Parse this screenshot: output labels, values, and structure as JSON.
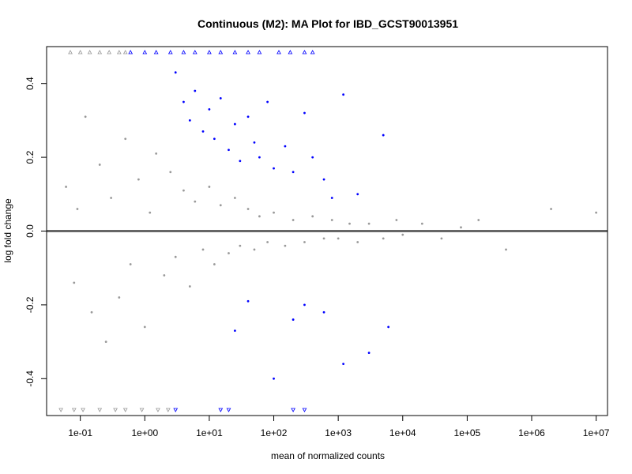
{
  "chart_data": {
    "type": "scatter",
    "title": "Continuous (M2): MA Plot for IBD_GCST90013951",
    "xlabel": "mean of normalized counts",
    "ylabel": "log fold change",
    "x_scale": "log10",
    "xlim": [
      0.03,
      15000000
    ],
    "ylim": [
      -0.5,
      0.5
    ],
    "x_ticks": [
      {
        "value": 0.1,
        "label": "1e-01"
      },
      {
        "value": 1,
        "label": "1e+00"
      },
      {
        "value": 10,
        "label": "1e+01"
      },
      {
        "value": 100,
        "label": "1e+02"
      },
      {
        "value": 1000,
        "label": "1e+03"
      },
      {
        "value": 10000,
        "label": "1e+04"
      },
      {
        "value": 100000,
        "label": "1e+05"
      },
      {
        "value": 1000000,
        "label": "1e+06"
      },
      {
        "value": 10000000,
        "label": "1e+07"
      }
    ],
    "y_ticks": [
      {
        "value": -0.4,
        "label": "-0.4"
      },
      {
        "value": -0.2,
        "label": "-0.2"
      },
      {
        "value": 0.0,
        "label": "0.0"
      },
      {
        "value": 0.2,
        "label": "0.2"
      },
      {
        "value": 0.4,
        "label": "0.4"
      }
    ],
    "reference_line": {
      "y": 0,
      "color": "#666666"
    },
    "colors": {
      "nonsignificant": "#999999",
      "significant": "#0000ff"
    },
    "grid": false,
    "legend": "none",
    "series": [
      {
        "values": [
          [
            0.06,
            0.12
          ],
          [
            0.08,
            -0.14
          ],
          [
            0.09,
            0.06
          ],
          [
            0.12,
            0.31
          ],
          [
            0.15,
            -0.22
          ],
          [
            0.2,
            0.18
          ],
          [
            0.25,
            -0.3
          ],
          [
            0.3,
            0.09
          ],
          [
            0.4,
            -0.18
          ],
          [
            0.5,
            0.25
          ],
          [
            0.6,
            -0.09
          ],
          [
            0.8,
            0.14
          ],
          [
            1,
            -0.26
          ],
          [
            1.2,
            0.05
          ],
          [
            1.5,
            0.21
          ],
          [
            2,
            -0.12
          ],
          [
            2.5,
            0.16
          ],
          [
            3,
            -0.07
          ],
          [
            4,
            0.11
          ],
          [
            5,
            -0.15
          ],
          [
            6,
            0.08
          ],
          [
            8,
            -0.05
          ],
          [
            10,
            0.12
          ],
          [
            12,
            -0.09
          ],
          [
            15,
            0.07
          ],
          [
            20,
            -0.06
          ],
          [
            25,
            0.09
          ],
          [
            30,
            -0.04
          ],
          [
            40,
            0.06
          ],
          [
            50,
            -0.05
          ],
          [
            60,
            0.04
          ],
          [
            80,
            -0.03
          ],
          [
            100,
            0.05
          ],
          [
            150,
            -0.04
          ],
          [
            200,
            0.03
          ],
          [
            300,
            -0.03
          ],
          [
            400,
            0.04
          ],
          [
            600,
            -0.02
          ],
          [
            800,
            0.03
          ],
          [
            1000,
            -0.02
          ],
          [
            1500,
            0.02
          ],
          [
            2000,
            -0.03
          ],
          [
            3000,
            0.02
          ],
          [
            5000,
            -0.02
          ],
          [
            8000,
            0.03
          ],
          [
            10000,
            -0.01
          ],
          [
            20000,
            0.02
          ],
          [
            40000,
            -0.02
          ],
          [
            80000,
            0.01
          ],
          [
            150000,
            0.03
          ],
          [
            400000,
            -0.05
          ],
          [
            2000000,
            0.06
          ],
          [
            10000000,
            0.05
          ]
        ]
      },
      {
        "values": [
          [
            3,
            0.43
          ],
          [
            4,
            0.35
          ],
          [
            5,
            0.3
          ],
          [
            6,
            0.38
          ],
          [
            8,
            0.27
          ],
          [
            10,
            0.33
          ],
          [
            12,
            0.25
          ],
          [
            15,
            0.36
          ],
          [
            20,
            0.22
          ],
          [
            25,
            0.29
          ],
          [
            30,
            0.19
          ],
          [
            40,
            0.31
          ],
          [
            50,
            0.24
          ],
          [
            60,
            0.2
          ],
          [
            80,
            0.35
          ],
          [
            100,
            0.17
          ],
          [
            150,
            0.23
          ],
          [
            200,
            0.16
          ],
          [
            300,
            0.32
          ],
          [
            400,
            0.2
          ],
          [
            600,
            0.14
          ],
          [
            800,
            0.09
          ],
          [
            1200,
            0.37
          ],
          [
            2000,
            0.1
          ],
          [
            5000,
            0.26
          ],
          [
            25,
            -0.27
          ],
          [
            40,
            -0.19
          ],
          [
            100,
            -0.4
          ],
          [
            200,
            -0.24
          ],
          [
            300,
            -0.2
          ],
          [
            600,
            -0.22
          ],
          [
            1200,
            -0.36
          ],
          [
            3000,
            -0.33
          ],
          [
            6000,
            -0.26
          ]
        ]
      }
    ],
    "clipped_top": [
      {
        "x": [
          0.07,
          0.1,
          0.14,
          0.2,
          0.28,
          0.4,
          0.5
        ],
        "color": "#999999"
      },
      {
        "x": [
          0.6,
          1,
          1.5,
          2.5,
          4,
          6,
          10,
          15,
          25,
          40,
          60,
          120,
          180,
          300,
          400
        ],
        "color": "#0000ff"
      }
    ],
    "clipped_bottom": [
      {
        "x": [
          0.05,
          0.08,
          0.11,
          0.2,
          0.35,
          0.5,
          0.9,
          1.6,
          2.3
        ],
        "color": "#999999"
      },
      {
        "x": [
          3,
          15,
          20,
          200,
          300
        ],
        "color": "#0000ff"
      }
    ]
  }
}
